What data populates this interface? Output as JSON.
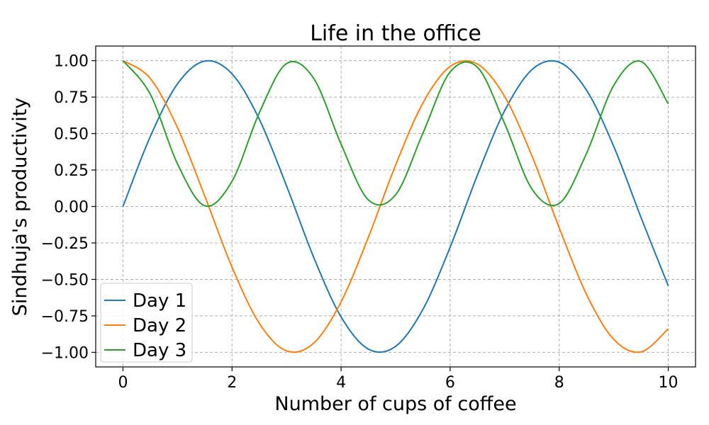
{
  "chart_data": {
    "type": "line",
    "title": "Life in the office",
    "xlabel": "Number of cups of coffee",
    "ylabel": "Sindhuja's productivity",
    "xlim": [
      -0.5,
      10.5
    ],
    "ylim": [
      -1.1,
      1.1
    ],
    "xticks": [
      0,
      2,
      4,
      6,
      8,
      10
    ],
    "xtick_labels": [
      "0",
      "2",
      "4",
      "6",
      "8",
      "10"
    ],
    "yticks": [
      1.0,
      0.75,
      0.5,
      0.25,
      0.0,
      -0.25,
      -0.5,
      -0.75,
      -1.0
    ],
    "ytick_labels": [
      "1.00",
      "0.75",
      "0.50",
      "0.25",
      "0.00",
      "−0.25",
      "−0.50",
      "−0.75",
      "−1.00"
    ],
    "grid": true,
    "legend_position": "lower-left",
    "x": [
      0,
      0.5,
      1,
      1.5,
      2,
      2.5,
      3,
      3.5,
      4,
      4.5,
      5,
      5.5,
      6,
      6.5,
      7,
      7.5,
      8,
      8.5,
      9,
      9.5,
      10
    ],
    "series": [
      {
        "name": "Day 1",
        "color": "#1f77b4",
        "values": [
          0.0,
          0.479,
          0.841,
          0.997,
          0.909,
          0.598,
          0.141,
          -0.351,
          -0.757,
          -0.978,
          -0.959,
          -0.706,
          -0.279,
          0.215,
          0.657,
          0.938,
          0.989,
          0.798,
          0.412,
          -0.075,
          -0.544
        ]
      },
      {
        "name": "Day 2",
        "color": "#ff7f0e",
        "values": [
          1.0,
          0.878,
          0.54,
          0.071,
          -0.416,
          -0.801,
          -0.99,
          -0.936,
          -0.654,
          -0.211,
          0.284,
          0.709,
          0.96,
          0.977,
          0.754,
          0.347,
          -0.146,
          -0.602,
          -0.911,
          -0.997,
          -0.839
        ]
      },
      {
        "name": "Day 3",
        "color": "#2ca02c",
        "values": [
          1.0,
          0.77,
          0.292,
          0.005,
          0.173,
          0.642,
          0.98,
          0.877,
          0.427,
          0.045,
          0.08,
          0.502,
          0.922,
          0.955,
          0.568,
          0.12,
          0.021,
          0.363,
          0.83,
          0.994,
          0.704
        ]
      }
    ]
  }
}
